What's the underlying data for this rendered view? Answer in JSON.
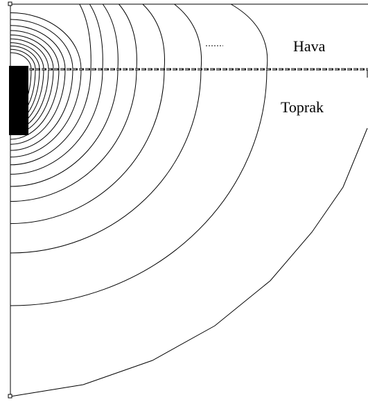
{
  "regions": [
    {
      "label": "Hava"
    },
    {
      "label": "Toprak"
    }
  ]
}
